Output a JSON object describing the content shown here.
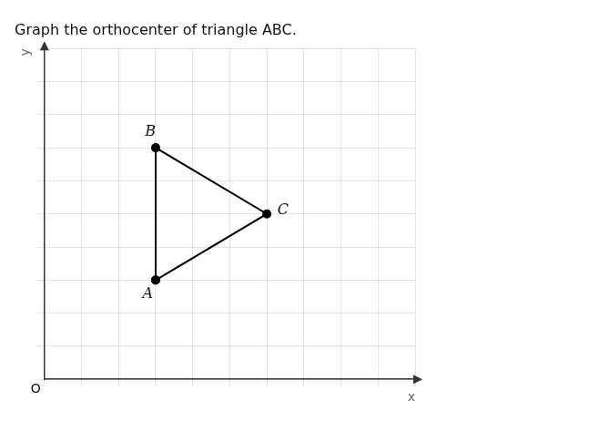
{
  "chart_data": {
    "type": "line",
    "title": "Graph the orthocenter of triangle ABC.",
    "x_label": "x",
    "y_label": "y",
    "annotations": [
      "O"
    ],
    "series": [
      {
        "x": [
          3,
          3,
          6,
          3
        ],
        "values": [
          3,
          7,
          5,
          3
        ],
        "point_labels": [
          "A",
          "B",
          "C",
          null
        ],
        "color": "#000000",
        "marker": "circle",
        "line_style": "solid"
      }
    ],
    "xlim": [
      0,
      10
    ],
    "ylim": [
      0,
      10
    ],
    "xticks": [
      0,
      1,
      2,
      3,
      4,
      5,
      6,
      7,
      8,
      9,
      10
    ],
    "yticks": [
      0,
      1,
      2,
      3,
      4,
      5,
      6,
      7,
      8,
      9,
      10
    ],
    "grid": true,
    "tick_labels": false
  }
}
